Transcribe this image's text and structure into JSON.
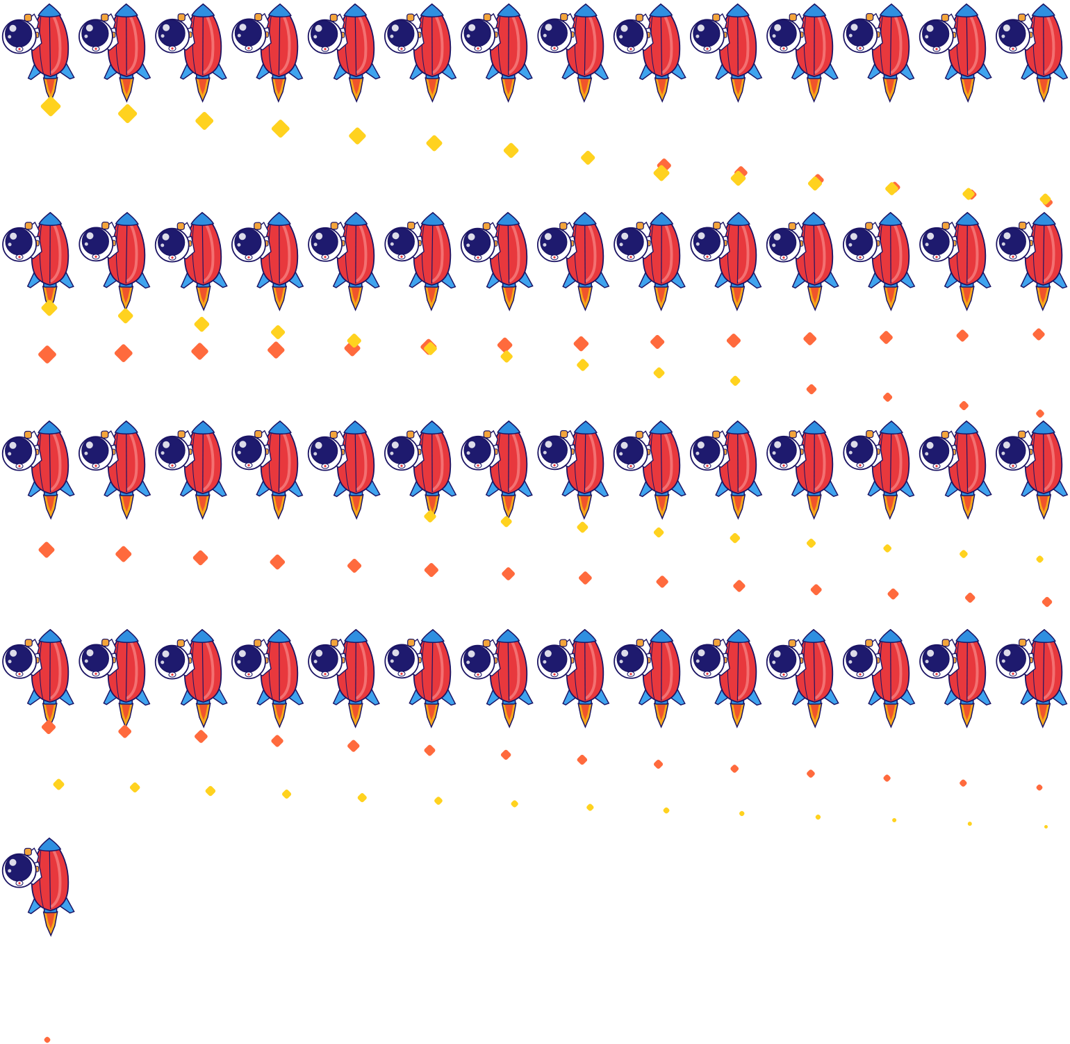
{
  "sprite_sheet": {
    "columns": 14,
    "rows": 5,
    "frame_count": 57,
    "sprite": "astronaut-riding-rocket",
    "colors": {
      "rocket_body": "#E8383D",
      "rocket_body_highlight": "#F47A7A",
      "rocket_outline": "#1B1464",
      "rocket_nose": "#2F8FE0",
      "rocket_fins": "#3FA3EE",
      "flame_outer": "#F7A81B",
      "flame_inner": "#F0542B",
      "helmet_visor": "#1E1A6E",
      "helmet_shell": "#FFFFFF",
      "suit_accent": "#F4A53A",
      "spark_yellow": "#FFD21F",
      "spark_orange": "#FF6A3D"
    }
  }
}
